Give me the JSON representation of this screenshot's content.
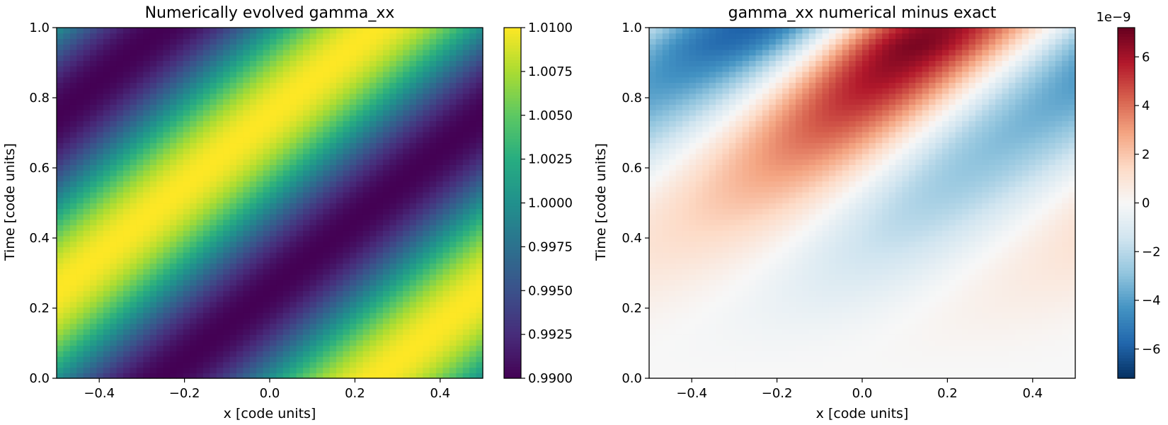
{
  "chart_data": [
    {
      "type": "heatmap",
      "title": "Numerically evolved gamma_xx",
      "xlabel": "x [code units]",
      "ylabel": "Time [code units]",
      "xlim": [
        -0.5,
        0.5
      ],
      "ylim": [
        0.0,
        1.0
      ],
      "xticks": [
        -0.4,
        -0.2,
        0.0,
        0.2,
        0.4
      ],
      "xtick_labels": [
        "−0.4",
        "−0.2",
        "0.0",
        "0.2",
        "0.4"
      ],
      "yticks": [
        0.0,
        0.2,
        0.4,
        0.6,
        0.8,
        1.0
      ],
      "ytick_labels": [
        "0.0",
        "0.2",
        "0.4",
        "0.6",
        "0.8",
        "1.0"
      ],
      "grid": {
        "nx": 64,
        "ny": 64
      },
      "field": {
        "form": "1 + A*sin(2*pi*(x - t))",
        "amplitude": 0.01
      },
      "colormap": "viridis",
      "colorbar": {
        "vmin": 0.99,
        "vmax": 1.01,
        "ticks": [
          0.99,
          0.9925,
          0.995,
          0.9975,
          1.0,
          1.0025,
          1.005,
          1.0075,
          1.01
        ],
        "tick_labels": [
          "0.9900",
          "0.9925",
          "0.9950",
          "0.9975",
          "1.0000",
          "1.0025",
          "1.0050",
          "1.0075",
          "1.0100"
        ],
        "offset_label": ""
      }
    },
    {
      "type": "heatmap",
      "title": "gamma_xx numerical minus exact",
      "xlabel": "x [code units]",
      "ylabel": "Time [code units]",
      "xlim": [
        -0.5,
        0.5
      ],
      "ylim": [
        0.0,
        1.0
      ],
      "xticks": [
        -0.4,
        -0.2,
        0.0,
        0.2,
        0.4
      ],
      "xtick_labels": [
        "−0.4",
        "−0.2",
        "0.0",
        "0.2",
        "0.4"
      ],
      "yticks": [
        0.0,
        0.2,
        0.4,
        0.6,
        0.8,
        1.0
      ],
      "ytick_labels": [
        "0.0",
        "0.2",
        "0.4",
        "0.6",
        "0.8",
        "1.0"
      ],
      "grid": {
        "nx": 64,
        "ny": 64
      },
      "field": {
        "form": "error envelope growing with time",
        "max_abs": 7.2e-09
      },
      "colormap": "RdBu_r",
      "colorbar": {
        "vmin": -7.2e-09,
        "vmax": 7.2e-09,
        "ticks": [
          -6e-09,
          -4e-09,
          -2e-09,
          0,
          2e-09,
          4e-09,
          6e-09
        ],
        "tick_labels": [
          "−6",
          "−4",
          "−2",
          "0",
          "2",
          "4",
          "6"
        ],
        "offset_label": "1e−9"
      }
    }
  ]
}
